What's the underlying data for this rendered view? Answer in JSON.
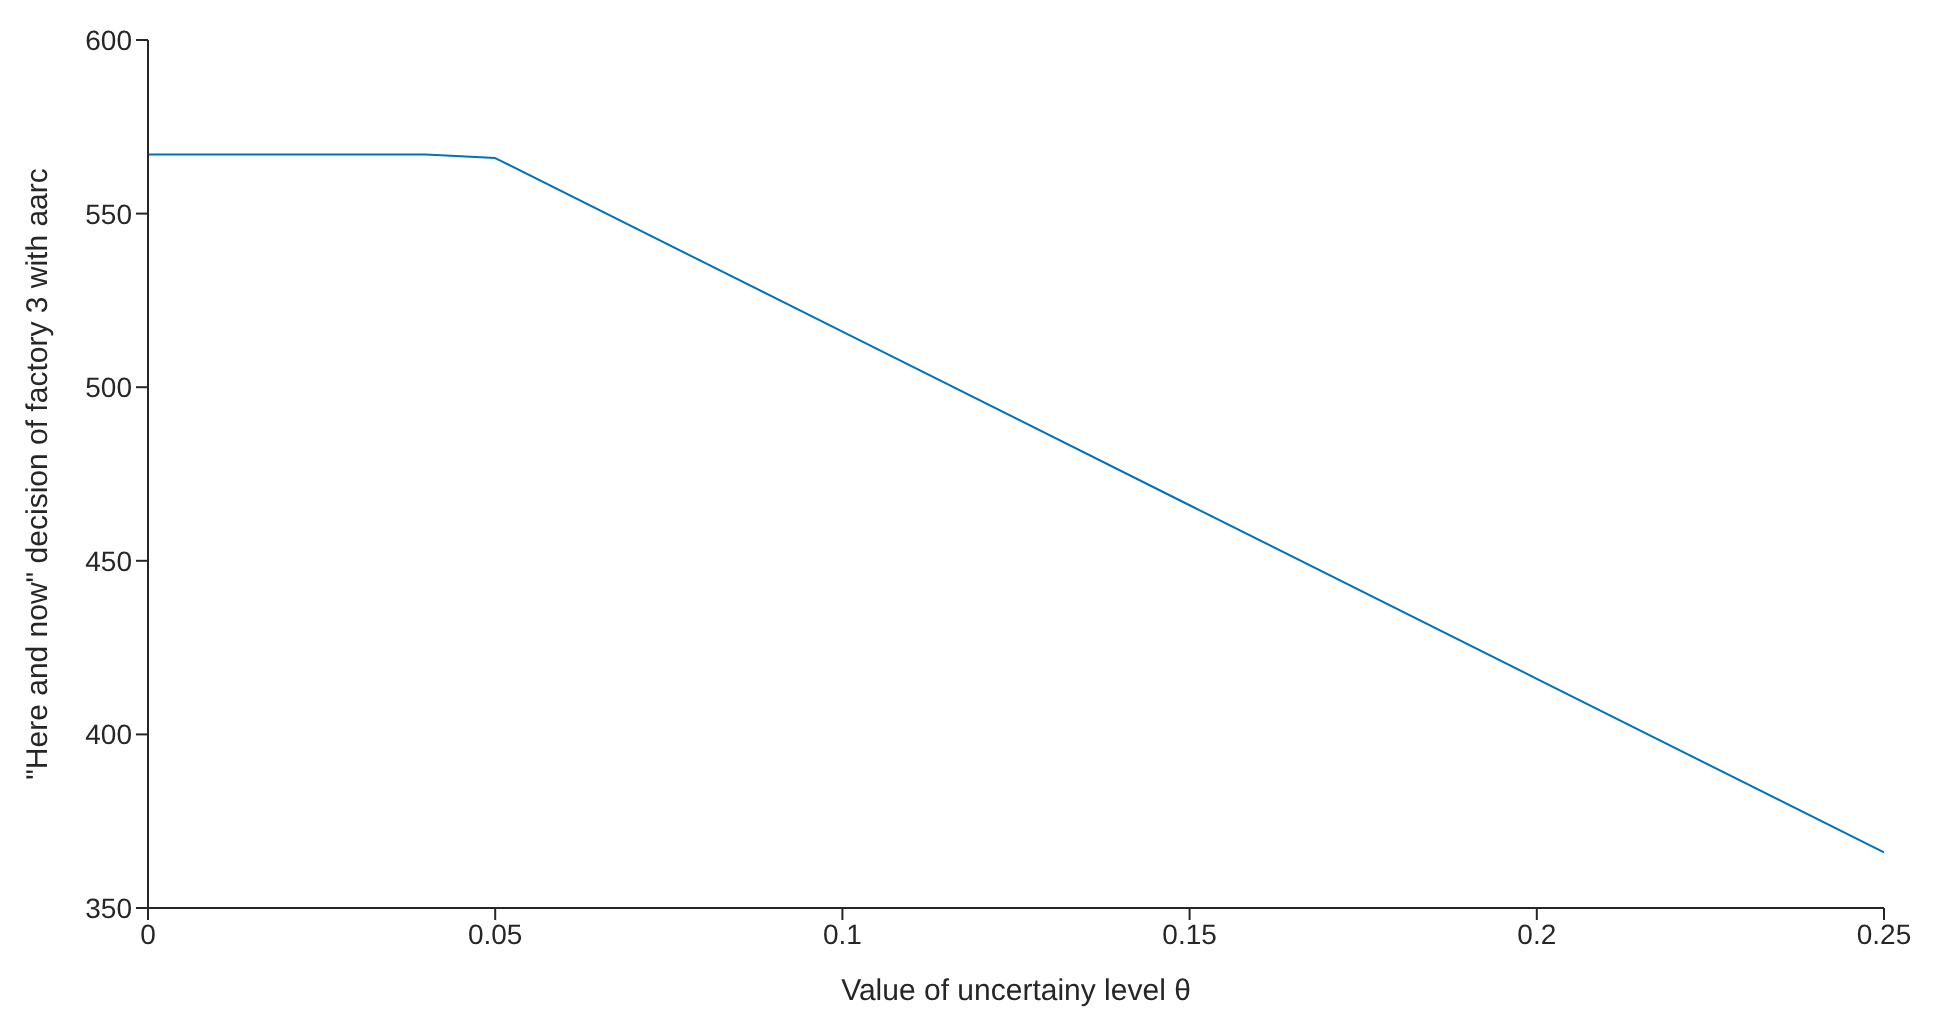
{
  "chart_data": {
    "type": "line",
    "xlabel": "Value of uncertainy level θ",
    "ylabel": "\"Here and now\" decision of factory 3 with aarc",
    "x": [
      0,
      0.01,
      0.02,
      0.03,
      0.04,
      0.05,
      0.1,
      0.15,
      0.2,
      0.25
    ],
    "series": [
      {
        "color": "#0072bd",
        "values": [
          567,
          567,
          567,
          567,
          567,
          566,
          516,
          466,
          416,
          366
        ]
      }
    ],
    "xlim": [
      0,
      0.25
    ],
    "xticks": [
      0,
      0.05,
      0.1,
      0.15,
      0.2,
      0.25
    ],
    "ylim": [
      350,
      600
    ],
    "yticks": [
      350,
      400,
      450,
      500,
      550,
      600
    ],
    "grid": false,
    "legend": false,
    "marker": "none",
    "line_style": "solid"
  }
}
